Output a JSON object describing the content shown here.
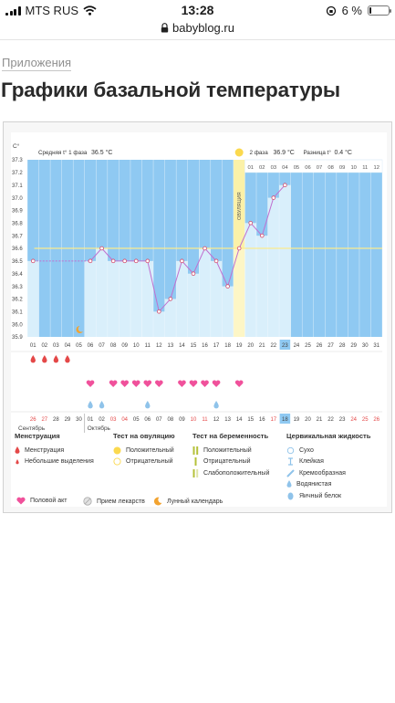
{
  "status_bar": {
    "carrier": "MTS RUS",
    "time": "13:28",
    "battery_percent": "6 %",
    "battery_level": 0.06
  },
  "browser": {
    "url": "babyblog.ru"
  },
  "page": {
    "category": "Приложения",
    "title": "Графики базальной температуры"
  },
  "colors": {
    "chart_bg": "#8fc9f2",
    "bar_fill": "#d9effb",
    "temp_line": "#c070d0",
    "coverline": "#fbeb8e",
    "ovulation": "#fbf1a8",
    "today": "#8fc9f2",
    "heart": "#f0519b",
    "drop": "#e44848",
    "drop_blue": "#8fc3ea",
    "weekend": "#e44848"
  },
  "chart_data": {
    "type": "line",
    "unit_label": "C°",
    "ylim": [
      35.9,
      37.3
    ],
    "y_ticks": [
      "37.3",
      "37.2",
      "37.1",
      "37.0",
      "36.9",
      "36.8",
      "36.7",
      "36.6",
      "36.5",
      "36.4",
      "36.3",
      "36.2",
      "36.1",
      "36.0",
      "35.9"
    ],
    "phase1_label": "Средняя t° 1 фаза",
    "phase1_value": "36.5 °C",
    "phase2_label": "2 фаза",
    "phase2_value": "36.9 °C",
    "diff_label": "Разница t°",
    "diff_value": "0.4 °C",
    "ovulation_label": "ОВУЛЯЦИЯ",
    "cycle_days": [
      "01",
      "02",
      "03",
      "04",
      "05",
      "06",
      "07",
      "08",
      "09",
      "10",
      "11",
      "12",
      "13",
      "14",
      "15",
      "16",
      "17",
      "18",
      "19",
      "20",
      "21",
      "22",
      "23",
      "24",
      "25",
      "26",
      "27",
      "28",
      "29",
      "30",
      "31"
    ],
    "phase2_days": [
      "01",
      "02",
      "03",
      "04",
      "05",
      "06",
      "07",
      "08",
      "09",
      "10",
      "11",
      "12"
    ],
    "temps": [
      36.5,
      null,
      null,
      null,
      null,
      36.5,
      36.6,
      36.5,
      36.5,
      36.5,
      36.5,
      36.1,
      36.2,
      36.5,
      36.4,
      36.6,
      36.5,
      36.3,
      36.6,
      36.8,
      36.7,
      37.0,
      37.1
    ],
    "coverline": 36.6,
    "ovulation_day": "19",
    "today_day": "23",
    "menstruation_days": [
      "01",
      "02",
      "03",
      "04"
    ],
    "intercourse_days": [
      "06",
      "08",
      "09",
      "10",
      "11",
      "12",
      "14",
      "15",
      "16",
      "17",
      "19"
    ],
    "fluid_days": [
      "06",
      "07",
      "11",
      "17"
    ],
    "lunar_day": "05",
    "calendar_dates": [
      "26",
      "27",
      "28",
      "29",
      "30",
      "01",
      "02",
      "03",
      "04",
      "05",
      "06",
      "07",
      "08",
      "09",
      "10",
      "11",
      "12",
      "13",
      "14",
      "15",
      "16",
      "17",
      "18",
      "19",
      "20",
      "21",
      "22",
      "23",
      "24",
      "25",
      "26"
    ],
    "calendar_weekend": [
      "26",
      "27",
      "03",
      "04",
      "10",
      "11",
      "17",
      "24",
      "25",
      "26"
    ],
    "calendar_today": "18",
    "months": [
      "Сентябрь",
      "Октябрь"
    ]
  },
  "legend": {
    "menstruation": {
      "title": "Менструация",
      "items": [
        "Менструация",
        "Небольшие выделения"
      ]
    },
    "ovulation_test": {
      "title": "Тест на овуляцию",
      "items": [
        "Положительный",
        "Отрицательный"
      ]
    },
    "pregnancy_test": {
      "title": "Тест на беременность",
      "items": [
        "Положительный",
        "Отрицательный",
        "Слабоположительный"
      ]
    },
    "cervical": {
      "title": "Цервикальная жидкость",
      "items": [
        "Сухо",
        "Клейкая",
        "Кремообразная",
        "Водянистая",
        "Яичный белок"
      ]
    },
    "bottom": [
      "Половой акт",
      "Прием лекарств",
      "Лунный календарь"
    ]
  }
}
